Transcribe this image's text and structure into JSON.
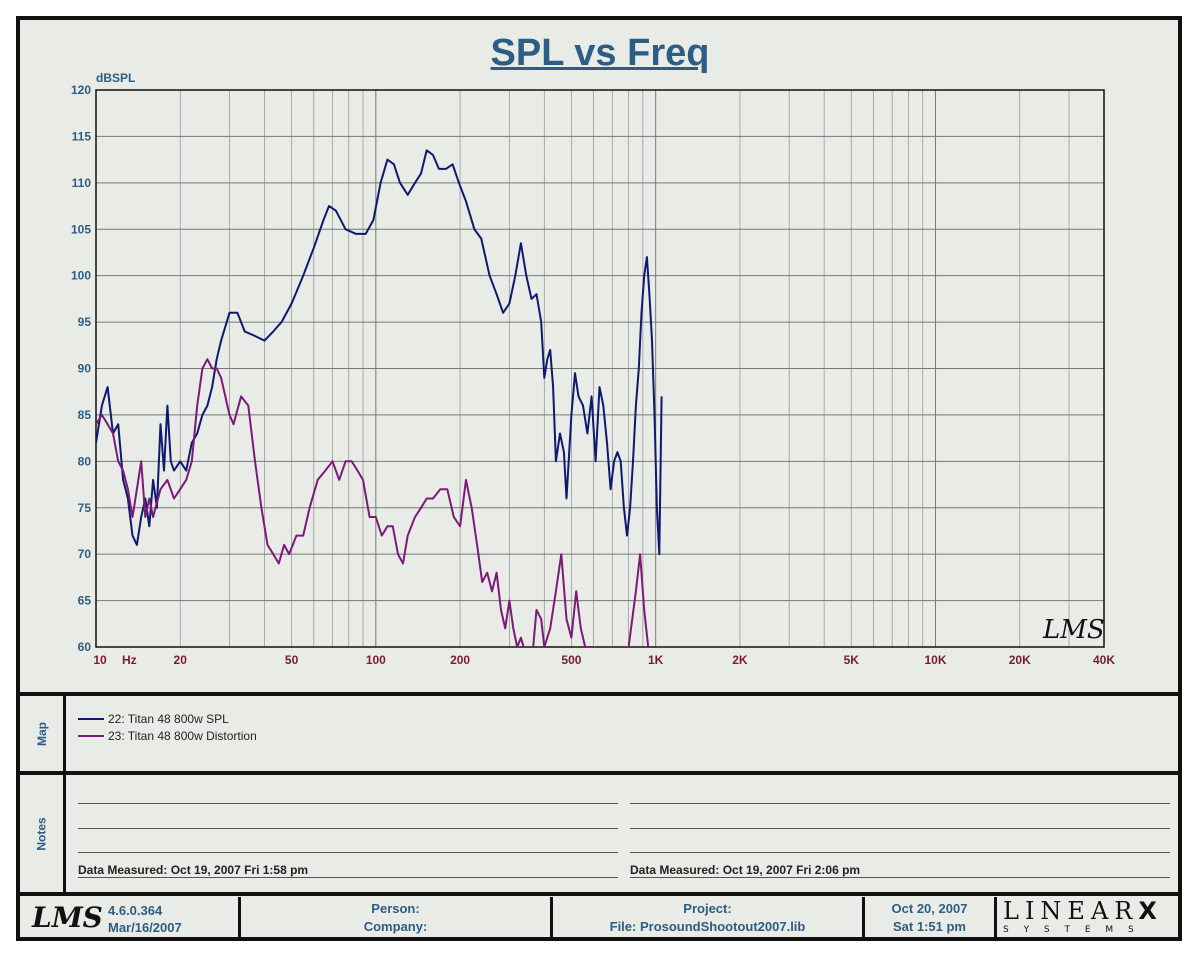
{
  "title": "SPL vs Freq",
  "chart_data": {
    "type": "line",
    "title": "SPL vs Freq",
    "ylabel": "dBSPL",
    "xlabel": "Hz",
    "x_scale": "log",
    "xlim": [
      10,
      40000
    ],
    "ylim": [
      60,
      120
    ],
    "y_ticks": [
      60,
      65,
      70,
      75,
      80,
      85,
      90,
      95,
      100,
      105,
      110,
      115,
      120
    ],
    "x_ticks": [
      {
        "value": 10,
        "label": "10"
      },
      {
        "value": 20,
        "label": "20"
      },
      {
        "value": 50,
        "label": "50"
      },
      {
        "value": 100,
        "label": "100"
      },
      {
        "value": 200,
        "label": "200"
      },
      {
        "value": 500,
        "label": "500"
      },
      {
        "value": 1000,
        "label": "1K"
      },
      {
        "value": 2000,
        "label": "2K"
      },
      {
        "value": 5000,
        "label": "5K"
      },
      {
        "value": 10000,
        "label": "10K"
      },
      {
        "value": 20000,
        "label": "20K"
      },
      {
        "value": 40000,
        "label": "40K"
      }
    ],
    "x_unit_label": "Hz",
    "grid": true,
    "watermark": "LMS",
    "series": [
      {
        "name": "22: Titan 48 800w SPL",
        "color": "#0d1a6e",
        "points": [
          [
            10,
            82
          ],
          [
            10.5,
            86
          ],
          [
            11,
            88
          ],
          [
            11.5,
            83
          ],
          [
            12,
            84
          ],
          [
            12.5,
            78
          ],
          [
            13,
            76
          ],
          [
            13.5,
            72
          ],
          [
            14,
            71
          ],
          [
            14.5,
            74
          ],
          [
            15,
            76
          ],
          [
            15.5,
            73
          ],
          [
            16,
            78
          ],
          [
            16.5,
            75
          ],
          [
            17,
            84
          ],
          [
            17.5,
            79
          ],
          [
            18,
            86
          ],
          [
            18.5,
            80
          ],
          [
            19,
            79
          ],
          [
            20,
            80
          ],
          [
            21,
            79
          ],
          [
            22,
            82
          ],
          [
            23,
            83
          ],
          [
            24,
            85
          ],
          [
            25,
            86
          ],
          [
            26,
            88
          ],
          [
            27,
            91
          ],
          [
            28,
            93
          ],
          [
            30,
            96
          ],
          [
            32,
            96
          ],
          [
            34,
            94
          ],
          [
            37,
            93.5
          ],
          [
            40,
            93
          ],
          [
            43,
            94
          ],
          [
            46,
            95
          ],
          [
            50,
            97
          ],
          [
            55,
            100
          ],
          [
            60,
            103
          ],
          [
            65,
            106
          ],
          [
            68,
            107.5
          ],
          [
            72,
            107
          ],
          [
            78,
            105
          ],
          [
            85,
            104.5
          ],
          [
            92,
            104.5
          ],
          [
            98,
            106
          ],
          [
            104,
            110
          ],
          [
            110,
            112.5
          ],
          [
            116,
            112
          ],
          [
            122,
            110
          ],
          [
            130,
            108.7
          ],
          [
            138,
            110
          ],
          [
            145,
            111
          ],
          [
            152,
            113.5
          ],
          [
            160,
            113
          ],
          [
            168,
            111.5
          ],
          [
            178,
            111.5
          ],
          [
            188,
            112
          ],
          [
            198,
            110
          ],
          [
            210,
            108
          ],
          [
            225,
            105
          ],
          [
            238,
            104
          ],
          [
            255,
            100
          ],
          [
            270,
            98
          ],
          [
            285,
            96
          ],
          [
            300,
            97
          ],
          [
            315,
            100
          ],
          [
            330,
            103.5
          ],
          [
            345,
            100
          ],
          [
            360,
            97.5
          ],
          [
            375,
            98
          ],
          [
            390,
            95
          ],
          [
            400,
            89
          ],
          [
            410,
            91
          ],
          [
            420,
            92
          ],
          [
            430,
            88
          ],
          [
            440,
            80
          ],
          [
            455,
            83
          ],
          [
            470,
            81
          ],
          [
            480,
            76
          ],
          [
            500,
            85
          ],
          [
            515,
            89.5
          ],
          [
            530,
            87
          ],
          [
            550,
            86
          ],
          [
            570,
            83
          ],
          [
            590,
            87
          ],
          [
            610,
            80
          ],
          [
            630,
            88
          ],
          [
            650,
            86
          ],
          [
            670,
            82
          ],
          [
            690,
            77
          ],
          [
            710,
            80
          ],
          [
            730,
            81
          ],
          [
            750,
            80
          ],
          [
            770,
            75
          ],
          [
            790,
            72
          ],
          [
            810,
            75
          ],
          [
            830,
            80
          ],
          [
            850,
            86
          ],
          [
            870,
            90
          ],
          [
            890,
            96
          ],
          [
            910,
            100
          ],
          [
            930,
            102
          ],
          [
            950,
            98
          ],
          [
            970,
            93
          ],
          [
            990,
            85
          ],
          [
            1010,
            75
          ],
          [
            1030,
            70
          ],
          [
            1050,
            87
          ]
        ]
      },
      {
        "name": "23: Titan 48 800w Distortion",
        "color": "#7a1a7a",
        "points": [
          [
            10,
            84
          ],
          [
            10.5,
            85
          ],
          [
            11,
            84
          ],
          [
            11.5,
            83
          ],
          [
            12,
            80
          ],
          [
            12.5,
            79
          ],
          [
            13,
            77
          ],
          [
            13.5,
            74
          ],
          [
            14,
            77
          ],
          [
            14.5,
            80
          ],
          [
            15,
            74
          ],
          [
            15.5,
            76
          ],
          [
            16,
            74
          ],
          [
            17,
            77
          ],
          [
            18,
            78
          ],
          [
            19,
            76
          ],
          [
            20,
            77
          ],
          [
            21,
            78
          ],
          [
            22,
            80
          ],
          [
            23,
            86
          ],
          [
            24,
            90
          ],
          [
            25,
            91
          ],
          [
            26,
            90
          ],
          [
            27,
            90
          ],
          [
            28,
            89
          ],
          [
            30,
            85
          ],
          [
            31,
            84
          ],
          [
            33,
            87
          ],
          [
            35,
            86
          ],
          [
            37,
            80
          ],
          [
            39,
            75
          ],
          [
            41,
            71
          ],
          [
            43,
            70
          ],
          [
            45,
            69
          ],
          [
            47,
            71
          ],
          [
            49,
            70
          ],
          [
            52,
            72
          ],
          [
            55,
            72
          ],
          [
            58,
            75
          ],
          [
            62,
            78
          ],
          [
            66,
            79
          ],
          [
            70,
            80
          ],
          [
            74,
            78
          ],
          [
            78,
            80
          ],
          [
            82,
            80
          ],
          [
            86,
            79
          ],
          [
            90,
            78
          ],
          [
            95,
            74
          ],
          [
            100,
            74
          ],
          [
            105,
            72
          ],
          [
            110,
            73
          ],
          [
            115,
            73
          ],
          [
            120,
            70
          ],
          [
            125,
            69
          ],
          [
            130,
            72
          ],
          [
            138,
            74
          ],
          [
            145,
            75
          ],
          [
            152,
            76
          ],
          [
            160,
            76
          ],
          [
            170,
            77
          ],
          [
            180,
            77
          ],
          [
            190,
            74
          ],
          [
            200,
            73
          ],
          [
            210,
            78
          ],
          [
            220,
            75
          ],
          [
            230,
            71
          ],
          [
            240,
            67
          ],
          [
            250,
            68
          ],
          [
            260,
            66
          ],
          [
            270,
            68
          ],
          [
            280,
            64
          ],
          [
            290,
            62
          ],
          [
            300,
            65
          ],
          [
            310,
            62
          ],
          [
            320,
            60
          ],
          [
            330,
            61
          ],
          [
            345,
            59
          ],
          [
            360,
            58
          ],
          [
            375,
            64
          ],
          [
            390,
            63
          ],
          [
            400,
            60
          ],
          [
            420,
            62
          ],
          [
            440,
            66
          ],
          [
            460,
            70
          ],
          [
            480,
            63
          ],
          [
            500,
            61
          ],
          [
            520,
            66
          ],
          [
            540,
            62
          ],
          [
            560,
            60
          ],
          [
            600,
            60
          ],
          [
            650,
            59.5
          ],
          [
            700,
            60
          ],
          [
            750,
            59.5
          ],
          [
            800,
            60
          ],
          [
            850,
            66
          ],
          [
            880,
            70
          ],
          [
            910,
            64
          ],
          [
            940,
            60
          ],
          [
            970,
            59
          ]
        ]
      }
    ]
  },
  "map_panel": {
    "label": "Map",
    "entries": [
      {
        "text": "22: Titan 48 800w SPL",
        "color": "#0d1a6e"
      },
      {
        "text": "23: Titan 48 800w Distortion",
        "color": "#7a1a7a"
      }
    ]
  },
  "notes_panel": {
    "label": "Notes",
    "left_measured": "Data Measured: Oct 19, 2007  Fri  1:58 pm",
    "right_measured": "Data Measured: Oct 19, 2007  Fri  2:06 pm"
  },
  "footer": {
    "logo": "LMS",
    "version": "4.6.0.364",
    "version_date": "Mar/16/2007",
    "person_label": "Person:",
    "company_label": "Company:",
    "project_label": "Project:",
    "file_label": "File: ProsoundShootout2007.lib",
    "date": "Oct 20, 2007",
    "day_time": "Sat  1:51 pm",
    "brand": "LINEAR",
    "brand_x": "X",
    "brand_sub": "S Y S T E M S"
  }
}
